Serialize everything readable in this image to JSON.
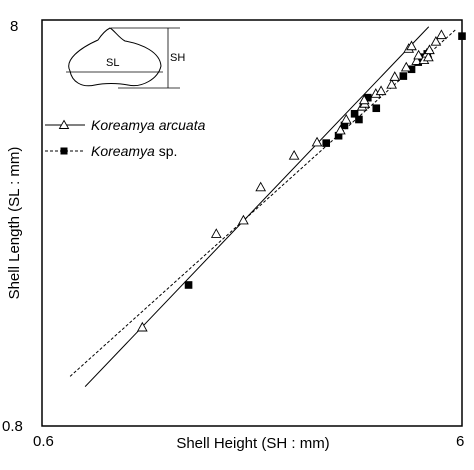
{
  "chart_data": {
    "type": "scatter",
    "title": "",
    "xlabel": "Shell Height (SH : mm)",
    "ylabel": "Shell Length (SL : mm)",
    "x_scale": "log",
    "y_scale": "log",
    "xlim": [
      0.6,
      6
    ],
    "ylim": [
      0.8,
      8
    ],
    "x_tick_labels": [
      "0.6",
      "6"
    ],
    "y_tick_labels": [
      "0.8",
      "8"
    ],
    "grid": false,
    "legend_position": "upper-left",
    "inset_labels": {
      "length": "SL",
      "height": "SH"
    },
    "series": [
      {
        "name_italic": "Koreamya arcuata",
        "name_suffix": "",
        "marker": "open-triangle",
        "line_style": "solid",
        "fit_line": {
          "x": [
            0.76,
            5.0
          ],
          "y": [
            1.0,
            7.7
          ]
        },
        "points": [
          {
            "x": 1.04,
            "y": 1.4
          },
          {
            "x": 1.56,
            "y": 2.38
          },
          {
            "x": 1.81,
            "y": 2.57
          },
          {
            "x": 1.99,
            "y": 3.1
          },
          {
            "x": 2.39,
            "y": 3.71
          },
          {
            "x": 2.71,
            "y": 4.0
          },
          {
            "x": 3.08,
            "y": 4.28
          },
          {
            "x": 3.18,
            "y": 4.55
          },
          {
            "x": 3.47,
            "y": 4.9
          },
          {
            "x": 3.52,
            "y": 4.98
          },
          {
            "x": 3.51,
            "y": 5.08
          },
          {
            "x": 3.74,
            "y": 5.27
          },
          {
            "x": 3.85,
            "y": 5.35
          },
          {
            "x": 4.08,
            "y": 5.55
          },
          {
            "x": 4.15,
            "y": 5.8
          },
          {
            "x": 4.42,
            "y": 6.12
          },
          {
            "x": 4.68,
            "y": 6.35
          },
          {
            "x": 4.73,
            "y": 6.55
          },
          {
            "x": 4.87,
            "y": 6.38
          },
          {
            "x": 4.95,
            "y": 6.62
          },
          {
            "x": 4.99,
            "y": 6.48
          },
          {
            "x": 5.02,
            "y": 6.75
          },
          {
            "x": 5.2,
            "y": 7.08
          },
          {
            "x": 5.36,
            "y": 7.35
          },
          {
            "x": 4.48,
            "y": 6.8
          },
          {
            "x": 4.55,
            "y": 6.9
          }
        ]
      },
      {
        "name_italic": "Koreamya",
        "name_suffix": " sp.",
        "marker": "filled-square",
        "line_style": "dashed",
        "fit_line": {
          "x": [
            0.7,
            5.8
          ],
          "y": [
            1.06,
            7.58
          ]
        },
        "points": [
          {
            "x": 1.34,
            "y": 1.78
          },
          {
            "x": 2.85,
            "y": 3.98
          },
          {
            "x": 3.05,
            "y": 4.15
          },
          {
            "x": 3.15,
            "y": 4.4
          },
          {
            "x": 3.33,
            "y": 4.7
          },
          {
            "x": 3.41,
            "y": 4.55
          },
          {
            "x": 3.58,
            "y": 5.15
          },
          {
            "x": 3.75,
            "y": 4.85
          },
          {
            "x": 4.35,
            "y": 5.82
          },
          {
            "x": 4.55,
            "y": 6.05
          },
          {
            "x": 4.72,
            "y": 6.3
          },
          {
            "x": 4.81,
            "y": 6.48
          },
          {
            "x": 4.96,
            "y": 6.6
          },
          {
            "x": 6.0,
            "y": 7.3
          }
        ]
      }
    ]
  }
}
